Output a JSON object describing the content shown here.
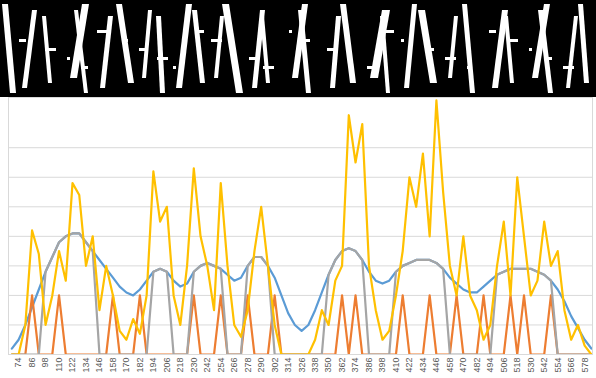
{
  "chart_data": {
    "type": "line",
    "x": [
      68,
      74,
      80,
      86,
      92,
      98,
      104,
      110,
      116,
      122,
      128,
      134,
      140,
      146,
      152,
      158,
      164,
      170,
      176,
      182,
      188,
      194,
      200,
      206,
      212,
      218,
      224,
      230,
      236,
      242,
      248,
      254,
      260,
      266,
      272,
      278,
      284,
      290,
      296,
      302,
      308,
      314,
      320,
      326,
      332,
      338,
      344,
      350,
      356,
      362,
      368,
      374,
      380,
      386,
      392,
      398,
      404,
      410,
      416,
      422,
      428,
      434,
      440,
      446,
      452,
      458,
      464,
      470,
      476,
      482,
      488,
      494,
      500,
      506,
      512,
      518,
      524,
      530,
      536,
      542,
      548,
      554,
      560,
      566,
      572,
      578,
      584
    ],
    "series": [
      {
        "color": "#5b9bd5",
        "values": [
          0.2,
          0.5,
          1.0,
          1.6,
          2.2,
          2.8,
          3.3,
          3.8,
          4.0,
          4.1,
          4.1,
          3.8,
          3.5,
          3.2,
          2.9,
          2.6,
          2.3,
          2.1,
          2.0,
          2.2,
          2.5,
          2.8,
          2.9,
          2.8,
          2.5,
          2.3,
          2.4,
          2.8,
          3.0,
          3.1,
          3.0,
          2.9,
          2.7,
          2.5,
          2.6,
          3.0,
          3.3,
          3.3,
          3.0,
          2.6,
          2.0,
          1.4,
          1.0,
          0.8,
          1.0,
          1.5,
          2.1,
          2.7,
          3.2,
          3.5,
          3.6,
          3.5,
          3.2,
          2.8,
          2.5,
          2.4,
          2.5,
          2.8,
          3.0,
          3.1,
          3.2,
          3.2,
          3.2,
          3.1,
          2.9,
          2.6,
          2.4,
          2.2,
          2.1,
          2.1,
          2.3,
          2.5,
          2.7,
          2.8,
          2.9,
          2.9,
          2.9,
          2.9,
          2.8,
          2.7,
          2.5,
          2.2,
          1.8,
          1.3,
          0.9,
          0.5,
          0.2
        ]
      },
      {
        "color": "#ed7d31",
        "values": [
          0,
          0,
          0,
          2.0,
          0,
          0,
          0,
          2.0,
          0,
          0,
          0,
          0,
          0,
          0,
          0,
          2.0,
          0,
          0,
          0,
          2.0,
          0,
          0,
          0,
          0,
          0,
          0,
          0,
          2.0,
          0,
          0,
          0,
          2.0,
          0,
          0,
          0,
          2.0,
          0,
          0,
          0,
          2.0,
          0,
          0,
          0,
          0,
          0,
          0,
          0,
          0,
          0,
          2.0,
          0,
          2.0,
          0,
          0,
          0,
          0,
          0,
          0,
          2.0,
          0,
          0,
          0,
          2.0,
          0,
          0,
          0,
          2.0,
          0,
          0,
          0,
          2.0,
          0,
          0,
          0,
          2.0,
          0,
          2.0,
          0,
          0,
          0,
          2.0,
          0,
          0,
          0,
          0,
          0,
          0
        ]
      },
      {
        "color": "#a5a5a5",
        "values": [
          0,
          0,
          0,
          0,
          0,
          2.8,
          3.3,
          3.8,
          4.0,
          4.1,
          4.1,
          3.8,
          3.5,
          0,
          0,
          0,
          0,
          0,
          0,
          0,
          0,
          2.8,
          2.9,
          2.8,
          0,
          0,
          0,
          2.8,
          3.0,
          3.1,
          3.0,
          2.9,
          0,
          0,
          0,
          3.0,
          3.3,
          3.3,
          3.0,
          0,
          0,
          0,
          0,
          0,
          0,
          0,
          0,
          2.7,
          3.2,
          3.5,
          3.6,
          3.5,
          3.2,
          0,
          0,
          0,
          0,
          2.8,
          3.0,
          3.1,
          3.2,
          3.2,
          3.2,
          3.1,
          2.9,
          0,
          0,
          0,
          0,
          0,
          0,
          0,
          2.7,
          2.8,
          2.9,
          2.9,
          2.9,
          2.9,
          2.8,
          2.7,
          2.5,
          0,
          0,
          0,
          0,
          0,
          0
        ]
      },
      {
        "color": "#ffc000",
        "values": [
          0,
          0,
          1.0,
          4.2,
          3.4,
          1.0,
          2.0,
          3.5,
          2.5,
          5.8,
          5.4,
          3.0,
          4.0,
          1.5,
          3.0,
          2.0,
          0.8,
          0.5,
          1.2,
          0.7,
          2.0,
          6.2,
          4.5,
          5.0,
          2.0,
          1.0,
          3.0,
          6.3,
          4.0,
          3.0,
          1.5,
          5.8,
          3.0,
          1.0,
          0.6,
          1.5,
          3.5,
          5.0,
          3.0,
          1.0,
          0,
          0,
          0,
          0,
          0,
          0.5,
          1.5,
          1.0,
          2.5,
          3.0,
          8.1,
          6.5,
          7.8,
          3.0,
          1.5,
          0.5,
          0.8,
          2.0,
          3.5,
          6.0,
          5.0,
          6.8,
          4.0,
          8.6,
          5.5,
          3.0,
          2.0,
          4.0,
          2.0,
          1.5,
          0.5,
          1.0,
          3.0,
          4.5,
          2.0,
          6.0,
          4.0,
          2.0,
          2.5,
          4.5,
          3.0,
          3.5,
          1.5,
          0.5,
          1.0,
          0.3,
          0
        ]
      }
    ],
    "xlim": [
      65,
      585
    ],
    "xticks": [
      74,
      86,
      98,
      110,
      122,
      134,
      146,
      158,
      170,
      182,
      194,
      206,
      218,
      230,
      242,
      254,
      266,
      278,
      290,
      302,
      314,
      326,
      338,
      350,
      362,
      374,
      386,
      398,
      410,
      422,
      434,
      446,
      458,
      470,
      482,
      494,
      506,
      518,
      530,
      542,
      554,
      566,
      578
    ],
    "ylim": [
      0,
      8.7
    ],
    "yticks": [
      0,
      1,
      2,
      3,
      4,
      5,
      6,
      7
    ],
    "grid": true,
    "tick_labels": "x"
  }
}
